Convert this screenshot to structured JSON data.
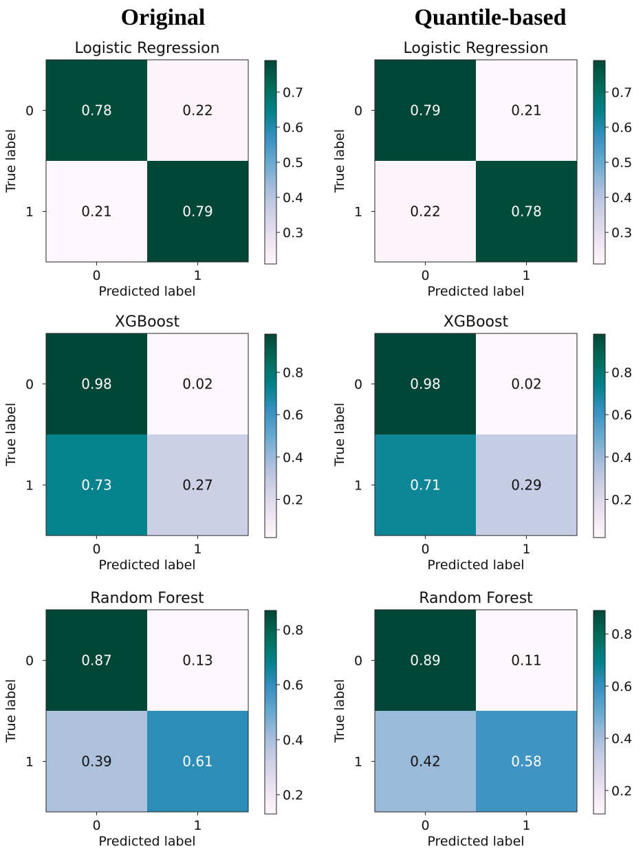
{
  "column_headers": [
    "Original",
    "Quantile-based"
  ],
  "chart_data": [
    {
      "type": "heatmap",
      "panel": "original-logistic-regression",
      "title": "Logistic Regression",
      "xlabel": "Predicted label",
      "ylabel": "True label",
      "x_ticks": [
        "0",
        "1"
      ],
      "y_ticks": [
        "0",
        "1"
      ],
      "values": [
        [
          0.78,
          0.22
        ],
        [
          0.21,
          0.79
        ]
      ],
      "colorbar": {
        "range": [
          0.21,
          0.79
        ],
        "ticks": [
          "0.3",
          "0.4",
          "0.5",
          "0.6",
          "0.7"
        ]
      }
    },
    {
      "type": "heatmap",
      "panel": "quantile-logistic-regression",
      "title": "Logistic Regression",
      "xlabel": "Predicted label",
      "ylabel": "True label",
      "x_ticks": [
        "0",
        "1"
      ],
      "y_ticks": [
        "0",
        "1"
      ],
      "values": [
        [
          0.79,
          0.21
        ],
        [
          0.22,
          0.78
        ]
      ],
      "colorbar": {
        "range": [
          0.21,
          0.79
        ],
        "ticks": [
          "0.3",
          "0.4",
          "0.5",
          "0.6",
          "0.7"
        ]
      }
    },
    {
      "type": "heatmap",
      "panel": "original-xgboost",
      "title": "XGBoost",
      "xlabel": "Predicted label",
      "ylabel": "True label",
      "x_ticks": [
        "0",
        "1"
      ],
      "y_ticks": [
        "0",
        "1"
      ],
      "values": [
        [
          0.98,
          0.02
        ],
        [
          0.73,
          0.27
        ]
      ],
      "colorbar": {
        "range": [
          0.02,
          0.98
        ],
        "ticks": [
          "0.2",
          "0.4",
          "0.6",
          "0.8"
        ]
      }
    },
    {
      "type": "heatmap",
      "panel": "quantile-xgboost",
      "title": "XGBoost",
      "xlabel": "Predicted label",
      "ylabel": "True label",
      "x_ticks": [
        "0",
        "1"
      ],
      "y_ticks": [
        "0",
        "1"
      ],
      "values": [
        [
          0.98,
          0.02
        ],
        [
          0.71,
          0.29
        ]
      ],
      "colorbar": {
        "range": [
          0.02,
          0.98
        ],
        "ticks": [
          "0.2",
          "0.4",
          "0.6",
          "0.8"
        ]
      }
    },
    {
      "type": "heatmap",
      "panel": "original-random-forest",
      "title": "Random Forest",
      "xlabel": "Predicted label",
      "ylabel": "True label",
      "x_ticks": [
        "0",
        "1"
      ],
      "y_ticks": [
        "0",
        "1"
      ],
      "values": [
        [
          0.87,
          0.13
        ],
        [
          0.39,
          0.61
        ]
      ],
      "colorbar": {
        "range": [
          0.13,
          0.87
        ],
        "ticks": [
          "0.2",
          "0.4",
          "0.6",
          "0.8"
        ]
      }
    },
    {
      "type": "heatmap",
      "panel": "quantile-random-forest",
      "title": "Random Forest",
      "xlabel": "Predicted label",
      "ylabel": "True label",
      "x_ticks": [
        "0",
        "1"
      ],
      "y_ticks": [
        "0",
        "1"
      ],
      "values": [
        [
          0.89,
          0.11
        ],
        [
          0.42,
          0.58
        ]
      ],
      "colorbar": {
        "range": [
          0.11,
          0.89
        ],
        "ticks": [
          "0.2",
          "0.4",
          "0.6",
          "0.8"
        ]
      }
    }
  ],
  "colormap": [
    "#fff7fb",
    "#ece2f0",
    "#d0d1e6",
    "#a6bddb",
    "#67a9cf",
    "#3690c0",
    "#02818a",
    "#016c59",
    "#014636"
  ]
}
